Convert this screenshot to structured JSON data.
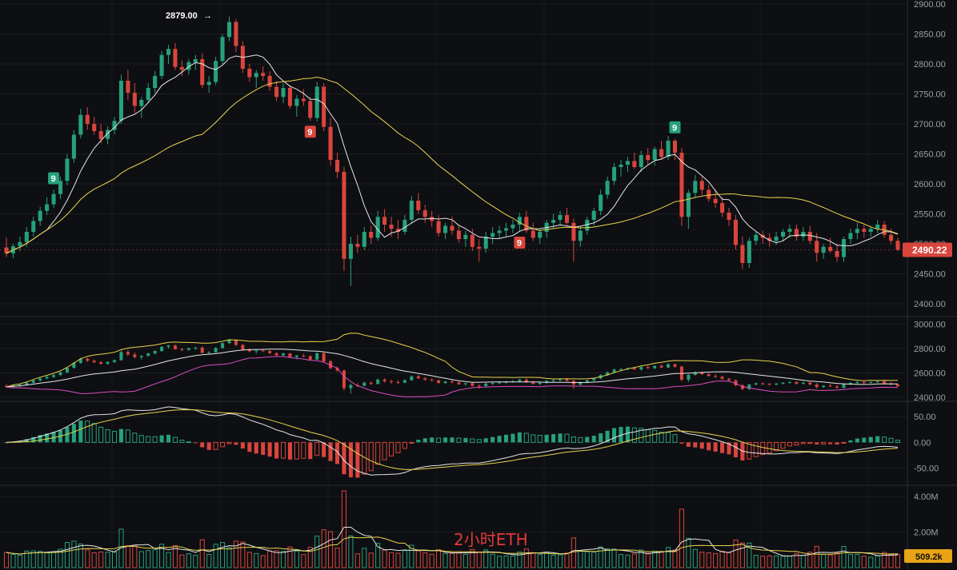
{
  "chart_data": [
    {
      "type": "candlestick",
      "title": "",
      "xlabel": "",
      "ylabel": "",
      "ylim": [
        2380,
        2900
      ],
      "y_ticks": [
        "2900.00",
        "2850.00",
        "2800.00",
        "2750.00",
        "2700.00",
        "2650.00",
        "2600.00",
        "2550.00",
        "2500.00",
        "2450.00",
        "2400.00"
      ],
      "last_price": "2490.22",
      "peak_label": "2879.00",
      "td_markers": [
        {
          "text": "9",
          "candle": 7,
          "side": "above",
          "color": "#26a17b"
        },
        {
          "text": "9",
          "candle": 45,
          "side": "below",
          "color": "#d9453d"
        },
        {
          "text": "9",
          "candle": 76,
          "side": "below",
          "color": "#d9453d"
        },
        {
          "text": "9",
          "candle": 99,
          "side": "above",
          "color": "#26a17b"
        }
      ],
      "candles": [
        [
          2494,
          2510,
          2478,
          2484
        ],
        [
          2484,
          2500,
          2476,
          2496
        ],
        [
          2496,
          2512,
          2488,
          2503
        ],
        [
          2503,
          2528,
          2495,
          2520
        ],
        [
          2520,
          2545,
          2512,
          2538
        ],
        [
          2538,
          2562,
          2530,
          2555
        ],
        [
          2555,
          2578,
          2548,
          2566
        ],
        [
          2566,
          2590,
          2560,
          2583
        ],
        [
          2583,
          2612,
          2575,
          2605
        ],
        [
          2605,
          2650,
          2598,
          2642
        ],
        [
          2642,
          2690,
          2635,
          2682
        ],
        [
          2682,
          2725,
          2676,
          2715
        ],
        [
          2715,
          2728,
          2690,
          2700
        ],
        [
          2700,
          2712,
          2682,
          2688
        ],
        [
          2688,
          2700,
          2668,
          2675
        ],
        [
          2675,
          2696,
          2666,
          2690
        ],
        [
          2690,
          2712,
          2682,
          2705
        ],
        [
          2705,
          2782,
          2700,
          2772
        ],
        [
          2772,
          2790,
          2740,
          2752
        ],
        [
          2752,
          2768,
          2718,
          2730
        ],
        [
          2730,
          2745,
          2710,
          2740
        ],
        [
          2740,
          2768,
          2735,
          2760
        ],
        [
          2760,
          2788,
          2752,
          2780
        ],
        [
          2780,
          2822,
          2775,
          2815
        ],
        [
          2815,
          2832,
          2800,
          2825
        ],
        [
          2825,
          2835,
          2790,
          2795
        ],
        [
          2795,
          2806,
          2780,
          2790
        ],
        [
          2790,
          2808,
          2782,
          2803
        ],
        [
          2803,
          2815,
          2790,
          2808
        ],
        [
          2808,
          2818,
          2760,
          2765
        ],
        [
          2765,
          2780,
          2752,
          2770
        ],
        [
          2770,
          2812,
          2765,
          2805
        ],
        [
          2805,
          2850,
          2800,
          2845
        ],
        [
          2845,
          2879,
          2838,
          2870
        ],
        [
          2870,
          2875,
          2820,
          2830
        ],
        [
          2830,
          2838,
          2785,
          2792
        ],
        [
          2792,
          2800,
          2770,
          2778
        ],
        [
          2778,
          2790,
          2760,
          2785
        ],
        [
          2785,
          2796,
          2772,
          2780
        ],
        [
          2780,
          2788,
          2755,
          2762
        ],
        [
          2762,
          2772,
          2738,
          2745
        ],
        [
          2745,
          2768,
          2735,
          2760
        ],
        [
          2760,
          2765,
          2725,
          2730
        ],
        [
          2730,
          2748,
          2712,
          2742
        ],
        [
          2742,
          2758,
          2730,
          2738
        ],
        [
          2738,
          2745,
          2705,
          2710
        ],
        [
          2710,
          2770,
          2704,
          2762
        ],
        [
          2762,
          2768,
          2688,
          2695
        ],
        [
          2695,
          2710,
          2630,
          2640
        ],
        [
          2640,
          2652,
          2610,
          2620
        ],
        [
          2620,
          2628,
          2455,
          2475
        ],
        [
          2475,
          2512,
          2430,
          2500
        ],
        [
          2500,
          2515,
          2485,
          2495
        ],
        [
          2495,
          2528,
          2490,
          2520
        ],
        [
          2520,
          2530,
          2500,
          2510
        ],
        [
          2510,
          2555,
          2505,
          2545
        ],
        [
          2545,
          2558,
          2520,
          2532
        ],
        [
          2532,
          2545,
          2512,
          2525
        ],
        [
          2525,
          2540,
          2508,
          2520
        ],
        [
          2520,
          2548,
          2515,
          2540
        ],
        [
          2540,
          2580,
          2535,
          2572
        ],
        [
          2572,
          2585,
          2550,
          2556
        ],
        [
          2556,
          2565,
          2535,
          2545
        ],
        [
          2545,
          2555,
          2528,
          2538
        ],
        [
          2538,
          2548,
          2512,
          2518
        ],
        [
          2518,
          2535,
          2508,
          2530
        ],
        [
          2530,
          2545,
          2515,
          2522
        ],
        [
          2522,
          2530,
          2502,
          2508
        ],
        [
          2508,
          2522,
          2495,
          2515
        ],
        [
          2515,
          2525,
          2488,
          2495
        ],
        [
          2495,
          2508,
          2470,
          2492
        ],
        [
          2492,
          2520,
          2485,
          2512
        ],
        [
          2512,
          2528,
          2500,
          2518
        ],
        [
          2518,
          2530,
          2508,
          2522
        ],
        [
          2522,
          2535,
          2512,
          2526
        ],
        [
          2526,
          2540,
          2518,
          2532
        ],
        [
          2532,
          2552,
          2520,
          2545
        ],
        [
          2545,
          2555,
          2518,
          2522
        ],
        [
          2522,
          2535,
          2505,
          2510
        ],
        [
          2510,
          2525,
          2500,
          2520
        ],
        [
          2520,
          2540,
          2510,
          2535
        ],
        [
          2535,
          2550,
          2525,
          2540
        ],
        [
          2540,
          2555,
          2530,
          2548
        ],
        [
          2548,
          2560,
          2532,
          2535
        ],
        [
          2535,
          2542,
          2470,
          2505
        ],
        [
          2505,
          2530,
          2495,
          2522
        ],
        [
          2522,
          2545,
          2515,
          2540
        ],
        [
          2540,
          2560,
          2530,
          2555
        ],
        [
          2555,
          2590,
          2548,
          2582
        ],
        [
          2582,
          2612,
          2575,
          2605
        ],
        [
          2605,
          2635,
          2598,
          2628
        ],
        [
          2628,
          2640,
          2612,
          2632
        ],
        [
          2632,
          2645,
          2620,
          2638
        ],
        [
          2638,
          2652,
          2625,
          2628
        ],
        [
          2628,
          2655,
          2620,
          2648
        ],
        [
          2648,
          2660,
          2632,
          2640
        ],
        [
          2640,
          2662,
          2630,
          2658
        ],
        [
          2658,
          2672,
          2640,
          2645
        ],
        [
          2645,
          2680,
          2640,
          2672
        ],
        [
          2672,
          2675,
          2640,
          2652
        ],
        [
          2652,
          2660,
          2530,
          2545
        ],
        [
          2545,
          2590,
          2525,
          2585
        ],
        [
          2585,
          2615,
          2578,
          2605
        ],
        [
          2605,
          2612,
          2582,
          2590
        ],
        [
          2590,
          2598,
          2570,
          2575
        ],
        [
          2575,
          2590,
          2560,
          2568
        ],
        [
          2568,
          2578,
          2545,
          2552
        ],
        [
          2552,
          2560,
          2530,
          2540
        ],
        [
          2540,
          2548,
          2490,
          2498
        ],
        [
          2498,
          2512,
          2458,
          2468
        ],
        [
          2468,
          2510,
          2460,
          2505
        ],
        [
          2505,
          2520,
          2498,
          2515
        ],
        [
          2515,
          2522,
          2500,
          2510
        ],
        [
          2510,
          2518,
          2495,
          2505
        ],
        [
          2505,
          2520,
          2498,
          2512
        ],
        [
          2512,
          2525,
          2505,
          2520
        ],
        [
          2520,
          2532,
          2510,
          2525
        ],
        [
          2525,
          2532,
          2505,
          2512
        ],
        [
          2512,
          2528,
          2505,
          2520
        ],
        [
          2520,
          2530,
          2500,
          2505
        ],
        [
          2505,
          2518,
          2470,
          2485
        ],
        [
          2485,
          2500,
          2475,
          2495
        ],
        [
          2495,
          2510,
          2485,
          2488
        ],
        [
          2488,
          2500,
          2470,
          2478
        ],
        [
          2478,
          2512,
          2470,
          2508
        ],
        [
          2508,
          2525,
          2500,
          2518
        ],
        [
          2518,
          2535,
          2508,
          2525
        ],
        [
          2525,
          2532,
          2510,
          2520
        ],
        [
          2520,
          2530,
          2512,
          2525
        ],
        [
          2525,
          2540,
          2518,
          2532
        ],
        [
          2532,
          2538,
          2510,
          2515
        ],
        [
          2515,
          2525,
          2500,
          2505
        ],
        [
          2505,
          2510,
          2488,
          2490
        ]
      ],
      "ma_short_color": "#e6e6e6",
      "ma_long_color": "#e8d44d",
      "up_color": "#26a17b",
      "down_color": "#d9453d"
    },
    {
      "type": "line",
      "title": "",
      "ylim": [
        2380,
        3050
      ],
      "y_ticks": [
        "3000.00",
        "2800.00",
        "2600.00",
        "2400.00"
      ],
      "series_colors": [
        "#e8d44d",
        "#e6e6e6",
        "#d94fc0"
      ]
    },
    {
      "type": "bar",
      "title": "",
      "ylim": [
        -80,
        75
      ],
      "y_ticks": [
        "50.00",
        "0.00",
        "-50.00"
      ],
      "line_colors": [
        "#e6e6e6",
        "#e8d44d"
      ]
    },
    {
      "type": "bar",
      "title": "",
      "ylim": [
        0,
        4500000
      ],
      "y_ticks": [
        "4.00M",
        "2.00M"
      ],
      "last_volume": "509.2k",
      "watermark": "2小时ETH"
    }
  ],
  "colors": {
    "background": "#0e0f12",
    "grid": "#1f2126",
    "price_tag": "#d9453d",
    "volume_tag": "#e8a317"
  }
}
